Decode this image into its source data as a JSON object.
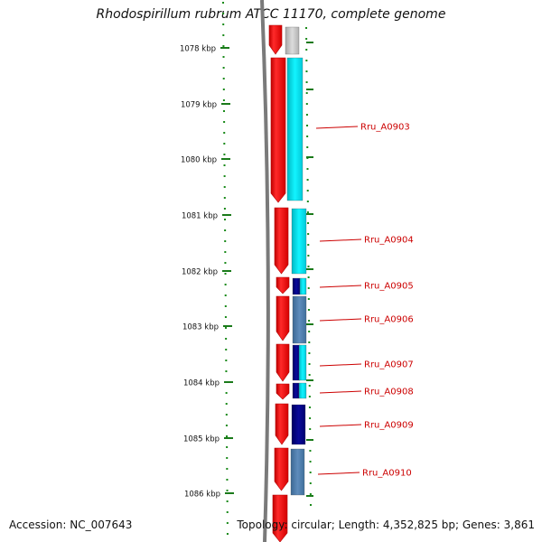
{
  "title": "Rhodospirillum rubrum ATCC 11170, complete genome",
  "footer": {
    "accession": "Accession: NC_007643",
    "topology": "Topology: circular; Length: 4,352,825 bp; Genes: 3,861"
  },
  "scale": {
    "ticks": [
      {
        "label": "1078 kbp"
      },
      {
        "label": "1079 kbp"
      },
      {
        "label": "1080 kbp"
      },
      {
        "label": "1081 kbp"
      },
      {
        "label": "1082 kbp"
      },
      {
        "label": "1083 kbp"
      },
      {
        "label": "1084 kbp"
      },
      {
        "label": "1085 kbp"
      },
      {
        "label": "1086 kbp"
      }
    ]
  },
  "genes": [
    {
      "label": "Rru_A0903"
    },
    {
      "label": "Rru_A0904"
    },
    {
      "label": "Rru_A0905"
    },
    {
      "label": "Rru_A0906"
    },
    {
      "label": "Rru_A0907"
    },
    {
      "label": "Rru_A0908"
    },
    {
      "label": "Rru_A0909"
    },
    {
      "label": "Rru_A0910"
    }
  ],
  "colors": {
    "backbone": "#808080",
    "cds": "#ff0000",
    "cyan": "#00e5ee",
    "navy": "#000080",
    "steelblue": "#4a78a8",
    "grey": "#c0c0c0",
    "tick": "#006400",
    "label": "#cc0000"
  }
}
